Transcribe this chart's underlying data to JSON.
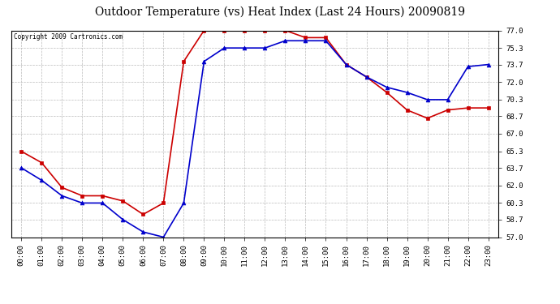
{
  "title": "Outdoor Temperature (vs) Heat Index (Last 24 Hours) 20090819",
  "copyright": "Copyright 2009 Cartronics.com",
  "hours": [
    "00:00",
    "01:00",
    "02:00",
    "03:00",
    "04:00",
    "05:00",
    "06:00",
    "07:00",
    "08:00",
    "09:00",
    "10:00",
    "11:00",
    "12:00",
    "13:00",
    "14:00",
    "15:00",
    "16:00",
    "17:00",
    "18:00",
    "19:00",
    "20:00",
    "21:00",
    "22:00",
    "23:00"
  ],
  "red_line": [
    65.3,
    64.2,
    61.8,
    61.0,
    61.0,
    60.5,
    59.2,
    60.3,
    74.0,
    77.0,
    77.0,
    77.0,
    77.0,
    77.0,
    76.3,
    76.3,
    73.7,
    72.5,
    71.0,
    69.3,
    68.5,
    69.3,
    69.5,
    69.5
  ],
  "blue_line": [
    63.7,
    62.5,
    61.0,
    60.3,
    60.3,
    58.7,
    57.5,
    57.0,
    60.3,
    74.0,
    75.3,
    75.3,
    75.3,
    76.0,
    76.0,
    76.0,
    73.7,
    72.5,
    71.5,
    71.0,
    70.3,
    70.3,
    73.5,
    73.7
  ],
  "ylim_min": 57.0,
  "ylim_max": 77.0,
  "yticks": [
    57.0,
    58.7,
    60.3,
    62.0,
    63.7,
    65.3,
    67.0,
    68.7,
    70.3,
    72.0,
    73.7,
    75.3,
    77.0
  ],
  "red_color": "#cc0000",
  "blue_color": "#0000cc",
  "bg_color": "#ffffff",
  "grid_color": "#bbbbbb",
  "title_fontsize": 10,
  "tick_fontsize": 6.5
}
